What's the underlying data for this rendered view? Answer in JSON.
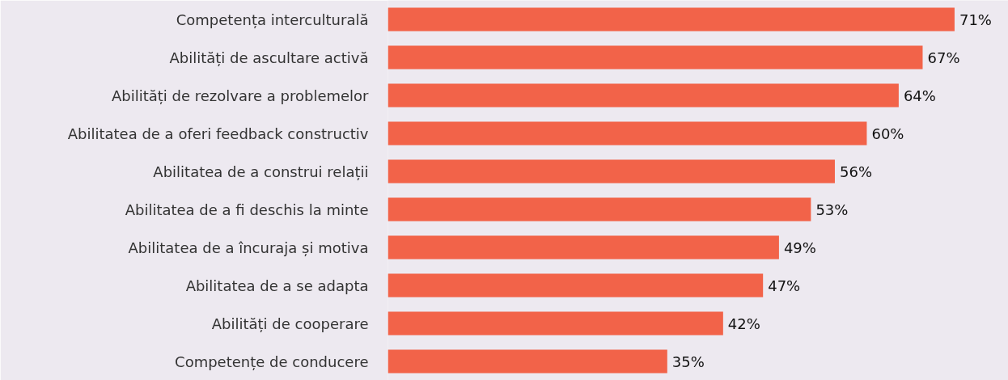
{
  "chart_data": {
    "type": "bar",
    "orientation": "horizontal",
    "categories": [
      "Competența interculturală",
      "Abilități de ascultare activă",
      "Abilități de rezolvare a problemelor",
      "Abilitatea de a oferi feedback constructiv",
      "Abilitatea de a construi relații",
      "Abilitatea de a fi deschis la minte",
      "Abilitatea de a încuraja și motiva",
      "Abilitatea de a se adapta",
      "Abilități de cooperare",
      "Competențe de conducere"
    ],
    "series": [
      {
        "color": "#f26349",
        "values": [
          71,
          67,
          64,
          60,
          56,
          53,
          49,
          47,
          42,
          35
        ],
        "value_labels": [
          "71%",
          "67%",
          "64%",
          "60%",
          "56%",
          "53%",
          "49%",
          "47%",
          "42%",
          "35%"
        ]
      }
    ],
    "grid": false
  }
}
